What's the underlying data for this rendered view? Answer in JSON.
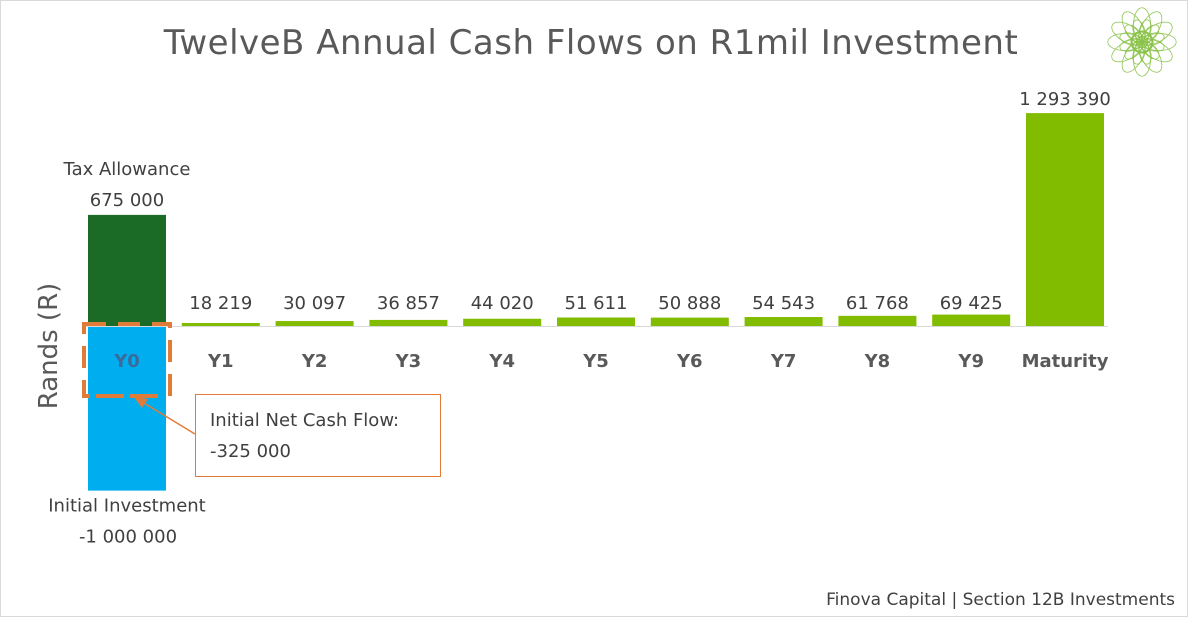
{
  "colors": {
    "positive": "#82bc00",
    "tax_allowance": "#1b6b27",
    "investment": "#00aeef",
    "callout": "#e07b39",
    "axis": "#d9d9d9",
    "logo": "#8bc34a"
  },
  "icons": {
    "logo": "mandala-logo-icon"
  },
  "footer": "Finova Capital | Section 12B Investments",
  "callout": {
    "line1": "Initial Net Cash Flow:",
    "line2": "-325 000"
  },
  "chart_data": {
    "type": "bar",
    "title": "TwelveB Annual Cash Flows on R1mil Investment",
    "xlabel": "",
    "ylabel": "Rands (R)",
    "categories": [
      "Y0",
      "Y1",
      "Y2",
      "Y3",
      "Y4",
      "Y5",
      "Y6",
      "Y7",
      "Y8",
      "Y9",
      "Maturity"
    ],
    "values": [
      null,
      18219,
      30097,
      36857,
      44020,
      51611,
      50888,
      54543,
      61768,
      69425,
      1293390
    ],
    "value_labels": [
      "",
      "18 219",
      "30 097",
      "36 857",
      "44 020",
      "51 611",
      "50 888",
      "54 543",
      "61 768",
      "69 425",
      "1 293 390"
    ],
    "y0_components": [
      {
        "name": "Tax Allowance",
        "value": 675000,
        "label": "675 000"
      },
      {
        "name": "Initial Investment",
        "value": -1000000,
        "label": "-1 000 000"
      }
    ],
    "net_initial_cash_flow": -325000,
    "ylim": [
      -1050000,
      1400000
    ],
    "grid": false,
    "legend": "none"
  }
}
